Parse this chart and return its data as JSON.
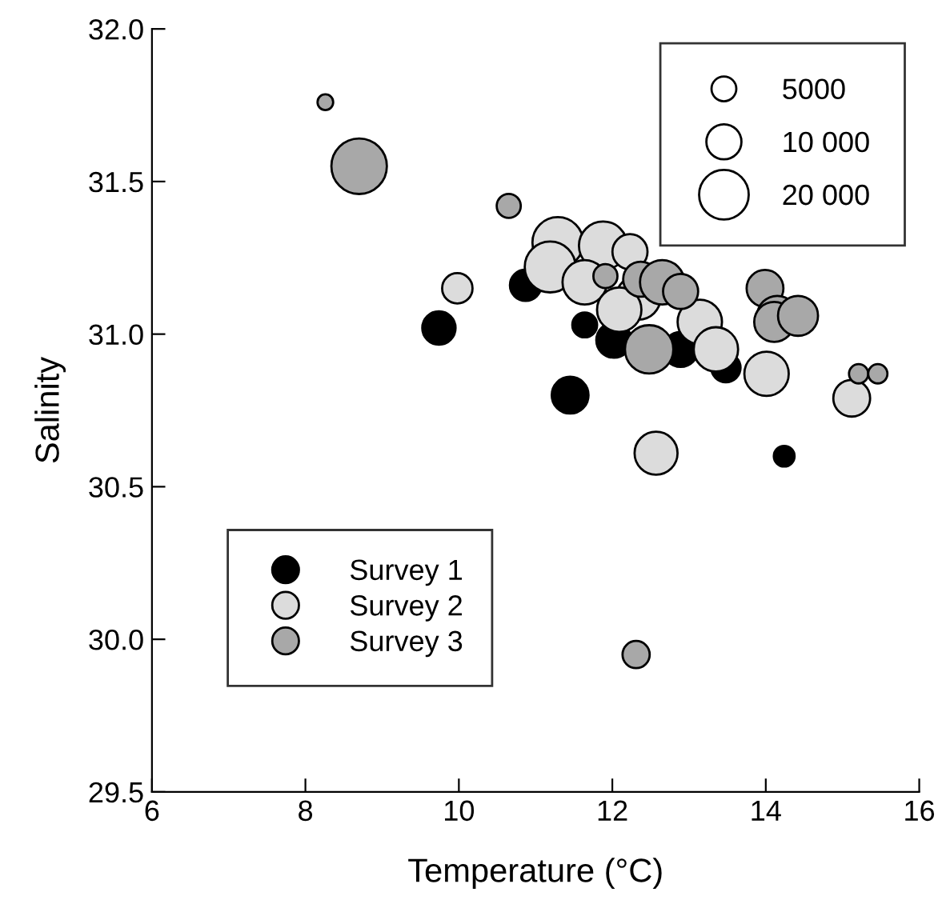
{
  "chart_data": {
    "type": "bubble",
    "xlabel": "Temperature (°C)",
    "ylabel": "Salinity",
    "xlim": [
      6,
      16
    ],
    "xticks": [
      6,
      8,
      10,
      12,
      14,
      16
    ],
    "ylim": [
      29.5,
      32.0
    ],
    "yticks": [
      {
        "value": 29.5,
        "label": "29.5"
      },
      {
        "value": 30.0,
        "label": "30.0"
      },
      {
        "value": 30.5,
        "label": "30.5"
      },
      {
        "value": 31.0,
        "label": "31.0"
      },
      {
        "value": 31.5,
        "label": "31.5"
      },
      {
        "value": 32.0,
        "label": "32.0"
      }
    ],
    "grid": false,
    "legend": "bottom left",
    "marker": "circle",
    "size_legend": [
      {
        "value": 5000,
        "label": "5000"
      },
      {
        "value": 10000,
        "label": "10 000"
      },
      {
        "value": 20000,
        "label": "20 000"
      }
    ],
    "series": [
      {
        "name": "Survey 1",
        "color": "#000000",
        "x": [
          9.74,
          10.87,
          11.64,
          12.02,
          12.89,
          13.48,
          11.45,
          14.24
        ],
        "values": [
          31.02,
          31.16,
          31.03,
          30.98,
          30.95,
          30.89,
          30.8,
          30.6
        ],
        "sizes": [
          9000,
          8000,
          5000,
          10000,
          10000,
          7000,
          11000,
          3500
        ]
      },
      {
        "name": "Survey 2",
        "color": "#dcdcdc",
        "x": [
          9.98,
          11.29,
          11.19,
          11.88,
          12.23,
          11.64,
          12.34,
          12.09,
          13.14,
          13.35,
          14.01,
          12.57,
          15.12
        ],
        "values": [
          31.15,
          31.3,
          31.22,
          31.29,
          31.27,
          31.17,
          31.12,
          31.08,
          31.04,
          30.95,
          30.87,
          30.61,
          30.79
        ],
        "sizes": [
          7500,
          21000,
          21000,
          19000,
          10000,
          16000,
          16000,
          16000,
          16000,
          16000,
          16000,
          15000,
          11000
        ]
      },
      {
        "name": "Survey 3",
        "color": "#a8a8a8",
        "x": [
          8.26,
          8.7,
          10.65,
          11.91,
          12.37,
          12.65,
          12.89,
          12.48,
          13.99,
          14.15,
          14.11,
          14.42,
          15.21,
          15.46,
          12.31
        ],
        "values": [
          31.76,
          31.55,
          31.42,
          31.19,
          31.18,
          31.17,
          31.14,
          30.95,
          31.15,
          31.06,
          31.04,
          31.06,
          30.87,
          30.87,
          29.95
        ],
        "sizes": [
          2000,
          25000,
          4700,
          4700,
          10000,
          16000,
          10000,
          19000,
          11000,
          13000,
          13000,
          13000,
          3000,
          3000,
          6000
        ]
      }
    ]
  }
}
